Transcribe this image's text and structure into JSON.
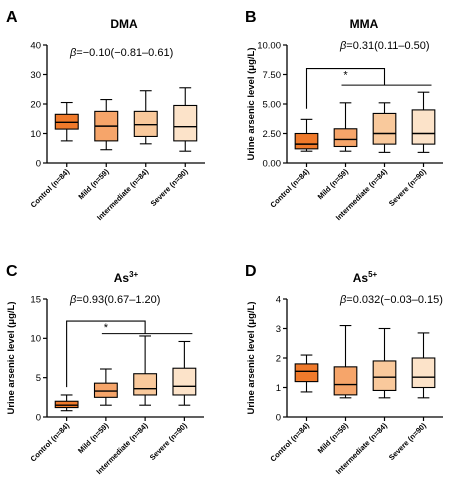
{
  "chart_data": [
    {
      "type": "box",
      "panel_label": "A",
      "title": "DMA",
      "title_superscript": "",
      "ylabel": "",
      "ylim": [
        0,
        40
      ],
      "yticks": [
        0,
        10,
        20,
        30,
        40
      ],
      "categories": [
        "Control (n=84)",
        "Mild (n=59)",
        "Intermediate (n=84)",
        "Severe (n=90)"
      ],
      "colors": [
        "#f07a2b",
        "#f6a56a",
        "#f9c99c",
        "#fce3c9"
      ],
      "boxes": [
        {
          "min": 7.5,
          "q1": 11.5,
          "median": 13.8,
          "q3": 16.5,
          "max": 20.5
        },
        {
          "min": 4.5,
          "q1": 7.5,
          "median": 12.5,
          "q3": 17.5,
          "max": 21.5
        },
        {
          "min": 6.5,
          "q1": 9.0,
          "median": 13.0,
          "q3": 17.5,
          "max": 24.5
        },
        {
          "min": 4.0,
          "q1": 7.5,
          "median": 12.3,
          "q3": 19.5,
          "max": 25.5
        }
      ],
      "annotation": "β=−0.10(−0.81–0.61)",
      "bracket": null
    },
    {
      "type": "box",
      "panel_label": "B",
      "title": "MMA",
      "title_superscript": "",
      "ylabel": "Urine arsenic level (μg/L)",
      "ylim": [
        0,
        10
      ],
      "yticks": [
        0.0,
        2.5,
        5.0,
        7.5,
        10.0
      ],
      "ytick_labels": [
        "0.00",
        "2.50",
        "5.00",
        "7.50",
        "10.00"
      ],
      "categories": [
        "Control (n=84)",
        "Mild (n=59)",
        "Intermediate (n=84)",
        "Severe (n=90)"
      ],
      "colors": [
        "#f07a2b",
        "#f6a56a",
        "#f9c99c",
        "#fce3c9"
      ],
      "boxes": [
        {
          "min": 1.0,
          "q1": 1.2,
          "median": 1.6,
          "q3": 2.5,
          "max": 3.7
        },
        {
          "min": 1.0,
          "q1": 1.4,
          "median": 2.0,
          "q3": 2.9,
          "max": 5.1
        },
        {
          "min": 0.9,
          "q1": 1.6,
          "median": 2.5,
          "q3": 4.2,
          "max": 5.1
        },
        {
          "min": 0.9,
          "q1": 1.6,
          "median": 2.5,
          "q3": 4.5,
          "max": 6.0
        }
      ],
      "annotation": "β=0.31(0.11–0.50)",
      "bracket": {
        "star": "*",
        "left_y": 4.6,
        "top_y": 8.0,
        "right_y": 6.6
      }
    },
    {
      "type": "box",
      "panel_label": "C",
      "title": "As",
      "title_superscript": "3+",
      "ylabel": "Urine arsenic level (μg/L)",
      "ylim": [
        0,
        15
      ],
      "yticks": [
        0,
        5,
        10,
        15
      ],
      "categories": [
        "Control (n=84)",
        "Mild (n=59)",
        "Intermediate (n=84)",
        "Severe (n=90)"
      ],
      "colors": [
        "#f07a2b",
        "#f6a56a",
        "#f9c99c",
        "#fce3c9"
      ],
      "boxes": [
        {
          "min": 0.8,
          "q1": 1.2,
          "median": 1.5,
          "q3": 2.0,
          "max": 2.8
        },
        {
          "min": 1.5,
          "q1": 2.5,
          "median": 3.3,
          "q3": 4.3,
          "max": 6.1
        },
        {
          "min": 1.5,
          "q1": 2.8,
          "median": 3.6,
          "q3": 5.5,
          "max": 10.3
        },
        {
          "min": 1.5,
          "q1": 2.8,
          "median": 3.9,
          "q3": 6.2,
          "max": 9.6
        }
      ],
      "annotation": "β=0.93(0.67–1.20)",
      "bracket": {
        "star": "*",
        "left_y": 3.8,
        "top_y": 12.2,
        "right_y": 10.6
      }
    },
    {
      "type": "box",
      "panel_label": "D",
      "title": "As",
      "title_superscript": "5+",
      "ylabel": "Urine arsenic level (μg/L)",
      "ylim": [
        0,
        4
      ],
      "yticks": [
        0,
        1,
        2,
        3,
        4
      ],
      "categories": [
        "Control (n=84)",
        "Mild (n=59)",
        "Intermediate (n=84)",
        "Severe (n=90)"
      ],
      "colors": [
        "#f07a2b",
        "#f6a56a",
        "#f9c99c",
        "#fce3c9"
      ],
      "boxes": [
        {
          "min": 0.85,
          "q1": 1.2,
          "median": 1.55,
          "q3": 1.8,
          "max": 2.1
        },
        {
          "min": 0.65,
          "q1": 0.75,
          "median": 1.1,
          "q3": 1.7,
          "max": 3.1
        },
        {
          "min": 0.65,
          "q1": 0.9,
          "median": 1.35,
          "q3": 1.9,
          "max": 3.0
        },
        {
          "min": 0.65,
          "q1": 1.0,
          "median": 1.35,
          "q3": 2.0,
          "max": 2.85
        }
      ],
      "annotation": "β=0.032(−0.03–0.15)",
      "bracket": null
    }
  ]
}
